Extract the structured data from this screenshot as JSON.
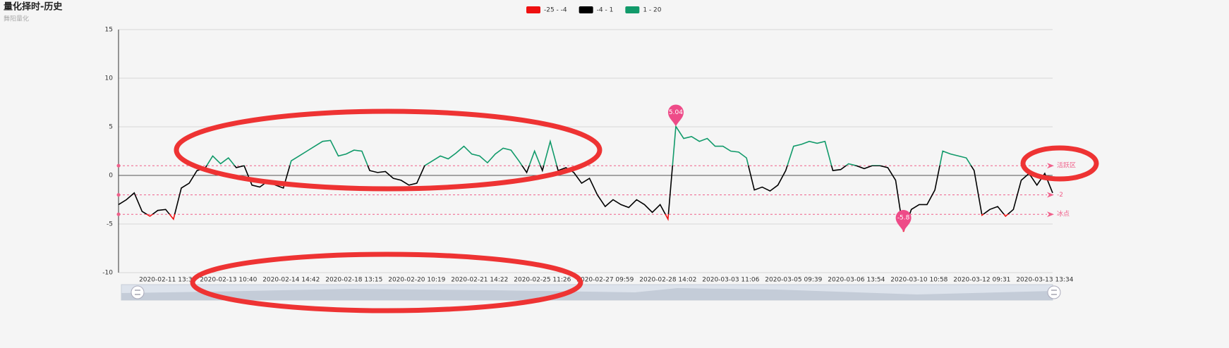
{
  "chart_data": {
    "type": "line",
    "title": "量化择时-历史",
    "subtitle": "舞阳量化",
    "pieces": [
      {
        "min": -25,
        "max": -4,
        "label": "-25 - -4",
        "color": "#ee1111"
      },
      {
        "min": -4,
        "max": 1,
        "label": "-4 - 1",
        "color": "#000000"
      },
      {
        "min": 1,
        "max": 20,
        "label": "1 - 20",
        "color": "#119a6a"
      }
    ],
    "categories": [
      null,
      null,
      null,
      null,
      null,
      null,
      "2020-02-11 13:3",
      null,
      null,
      null,
      null,
      null,
      null,
      null,
      "2020-02-13 10:40",
      null,
      null,
      null,
      null,
      null,
      null,
      null,
      "2020-02-14 14:42",
      null,
      null,
      null,
      null,
      null,
      null,
      null,
      "2020-02-18 13:15",
      null,
      null,
      null,
      null,
      null,
      null,
      null,
      "2020-02-20 10:19",
      null,
      null,
      null,
      null,
      null,
      null,
      null,
      "2020-02-21 14:22",
      null,
      null,
      null,
      null,
      null,
      null,
      null,
      "2020-02-25 11:26",
      null,
      null,
      null,
      null,
      null,
      null,
      null,
      "2020-02-27 09:59",
      null,
      null,
      null,
      null,
      null,
      null,
      null,
      "2020-02-28 14:02",
      null,
      null,
      null,
      null,
      null,
      null,
      null,
      "2020-03-03 11:06",
      null,
      null,
      null,
      null,
      null,
      null,
      null,
      "2020-03-05 09:39",
      null,
      null,
      null,
      null,
      null,
      null,
      null,
      "2020-03-06 13:54",
      null,
      null,
      null,
      null,
      null,
      null,
      null,
      "2020-03-10 10:58",
      null,
      null,
      null,
      null,
      null,
      null,
      null,
      "2020-03-12 09:31",
      null,
      null,
      null,
      null,
      null,
      null,
      null,
      "2020-03-13 13:34",
      null
    ],
    "values": [
      -3,
      -2.5,
      -1.8,
      -3.7,
      -4.2,
      -3.6,
      -3.5,
      -4.5,
      -1.3,
      -0.8,
      0.5,
      0.7,
      2,
      1.2,
      1.8,
      0.8,
      1,
      -1,
      -1.2,
      -0.6,
      -1,
      -1.3,
      1.5,
      2,
      2.5,
      3,
      3.5,
      3.6,
      2,
      2.2,
      2.6,
      2.5,
      0.5,
      0.3,
      0.4,
      -0.3,
      -0.5,
      -1,
      -0.8,
      1,
      1.5,
      2,
      1.7,
      2.3,
      3,
      2.2,
      2,
      1.3,
      2.2,
      2.8,
      2.6,
      1.5,
      0.3,
      2.5,
      0.5,
      3.5,
      0.5,
      0.8,
      0.3,
      -0.8,
      -0.3,
      -2,
      -3.2,
      -2.5,
      -3,
      -3.3,
      -2.5,
      -3,
      -3.8,
      -3,
      -4.5,
      5.04,
      3.8,
      4,
      3.5,
      3.8,
      3,
      3,
      2.5,
      2.4,
      1.8,
      -1.5,
      -1.2,
      -1.6,
      -1,
      0.5,
      3,
      3.2,
      3.5,
      3.3,
      3.5,
      0.5,
      0.6,
      1.2,
      1,
      0.7,
      1,
      1,
      0.8,
      -0.5,
      -5.8,
      -3.5,
      -3,
      -3,
      -1.5,
      2.5,
      2.2,
      2,
      1.8,
      0.5,
      -4.1,
      -3.5,
      -3.2,
      -4.2,
      -3.5,
      -0.5,
      0.2,
      -1,
      0.2,
      -1.8
    ],
    "ylim": [
      -10,
      15
    ],
    "yticks": [
      -10,
      -5,
      0,
      5,
      10,
      15
    ],
    "grid": true,
    "mark_lines": [
      {
        "value": 1,
        "label": "活跃区"
      },
      {
        "value": -2
      },
      {
        "value": -4,
        "label": "冰点"
      }
    ],
    "mark_points": [
      5.04,
      -5.8
    ]
  }
}
